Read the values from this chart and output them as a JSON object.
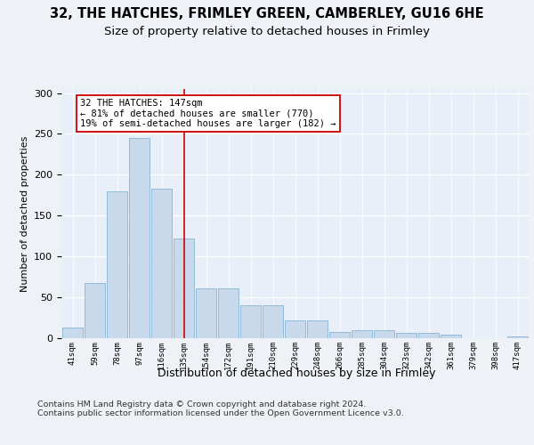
{
  "title1": "32, THE HATCHES, FRIMLEY GREEN, CAMBERLEY, GU16 6HE",
  "title2": "Size of property relative to detached houses in Frimley",
  "xlabel": "Distribution of detached houses by size in Frimley",
  "ylabel": "Number of detached properties",
  "categories": [
    "41sqm",
    "59sqm",
    "78sqm",
    "97sqm",
    "116sqm",
    "135sqm",
    "154sqm",
    "172sqm",
    "191sqm",
    "210sqm",
    "229sqm",
    "248sqm",
    "266sqm",
    "285sqm",
    "304sqm",
    "323sqm",
    "342sqm",
    "361sqm",
    "379sqm",
    "398sqm",
    "417sqm"
  ],
  "values": [
    13,
    68,
    180,
    245,
    183,
    122,
    61,
    61,
    40,
    40,
    22,
    22,
    8,
    10,
    10,
    7,
    6,
    4,
    0,
    0,
    2
  ],
  "bar_color": "#c8d9eb",
  "bar_edge_color": "#88b4d4",
  "vline_x": 5.0,
  "vline_color": "#cc0000",
  "annotation_text": "32 THE HATCHES: 147sqm\n← 81% of detached houses are smaller (770)\n19% of semi-detached houses are larger (182) →",
  "ylim_max": 305,
  "yticks": [
    0,
    50,
    100,
    150,
    200,
    250,
    300
  ],
  "footer": "Contains HM Land Registry data © Crown copyright and database right 2024.\nContains public sector information licensed under the Open Government Licence v3.0.",
  "bg_color": "#eef2f7",
  "plot_bg_color": "#e8eff8"
}
